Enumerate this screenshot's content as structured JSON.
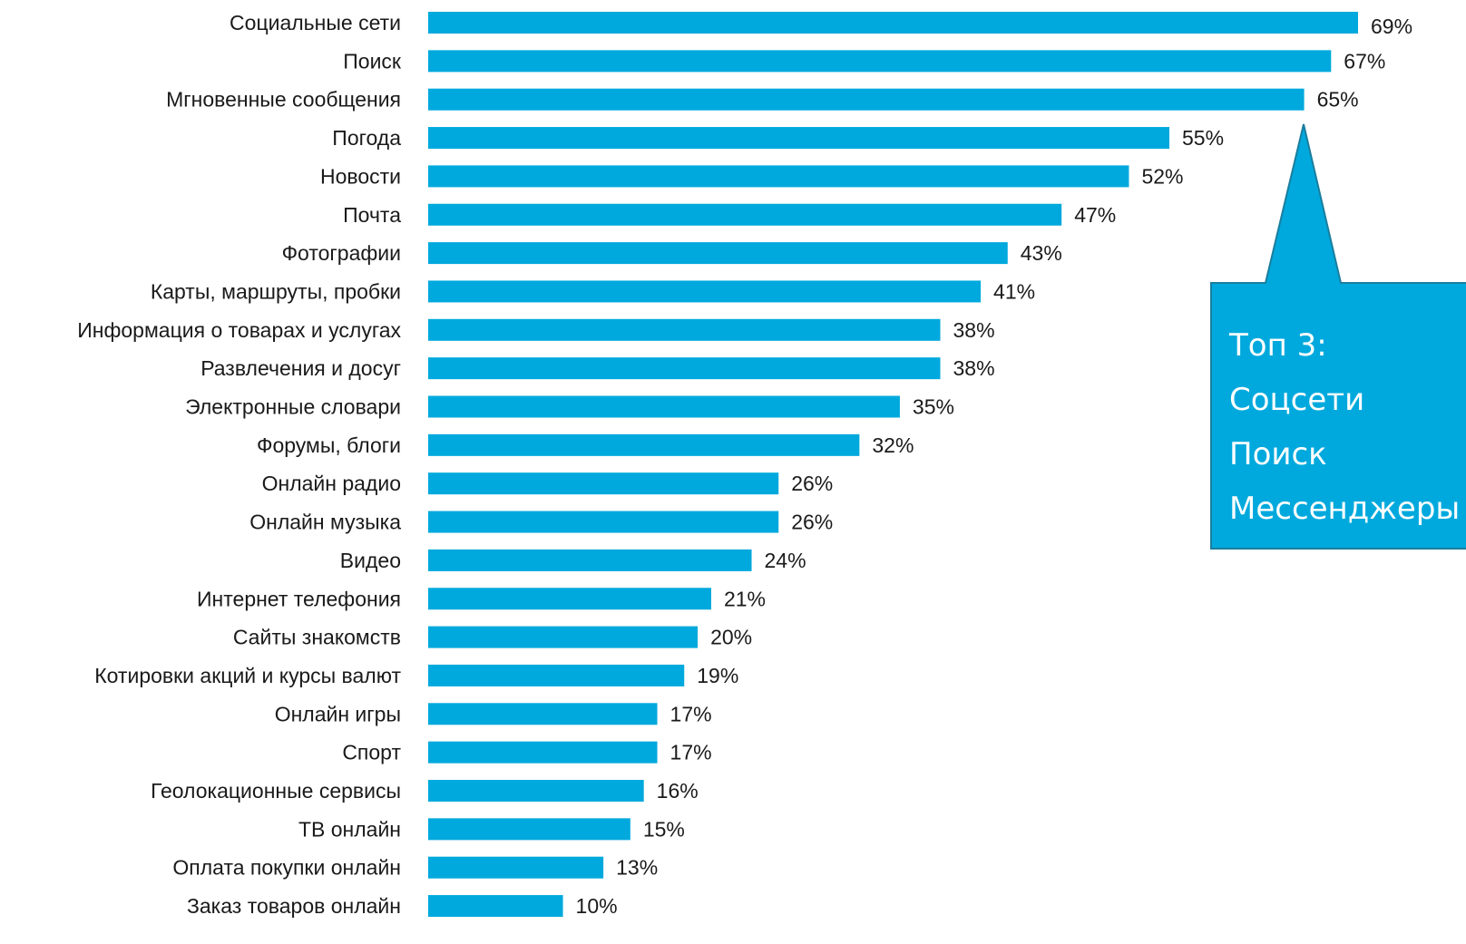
{
  "chart_data": {
    "type": "bar",
    "orientation": "horizontal",
    "title": "",
    "xlabel": "",
    "ylabel": "",
    "xlim": [
      0,
      69
    ],
    "grid": false,
    "legend": "none",
    "bar_color": "#00A9DD",
    "categories": [
      "Социальные сети",
      "Поиск",
      "Мгновенные сообщения",
      "Погода",
      "Новости",
      "Почта",
      "Фотографии",
      "Карты, маршруты, пробки",
      "Информация о товарах и услугах",
      "Развлечения и досуг",
      "Электронные словари",
      "Форумы, блоги",
      "Онлайн радио",
      "Онлайн музыка",
      "Видео",
      "Интернет телефония",
      "Сайты знакомств",
      "Котировки акций и курсы валют",
      "Онлайн игры",
      "Спорт",
      "Геолокационные сервисы",
      "ТВ онлайн",
      "Оплата покупки онлайн",
      "Заказ товаров онлайн"
    ],
    "values": [
      69,
      67,
      65,
      55,
      52,
      47,
      43,
      41,
      38,
      38,
      35,
      32,
      26,
      26,
      24,
      21,
      20,
      19,
      17,
      17,
      16,
      15,
      13,
      10
    ],
    "value_labels": [
      "69%",
      "67%",
      "65%",
      "55%",
      "52%",
      "47%",
      "43%",
      "41%",
      "38%",
      "38%",
      "35%",
      "32%",
      "26%",
      "26%",
      "24%",
      "21%",
      "20%",
      "19%",
      "17%",
      "17%",
      "16%",
      "15%",
      "13%",
      "10%"
    ]
  },
  "callout": {
    "lines": [
      "Топ 3:",
      "Соцсети",
      "Поиск",
      "Мессенджеры"
    ],
    "fill_color": "#00A9DD",
    "border_color": "#1A7E9E",
    "points_to_category": "Мгновенные сообщения"
  }
}
